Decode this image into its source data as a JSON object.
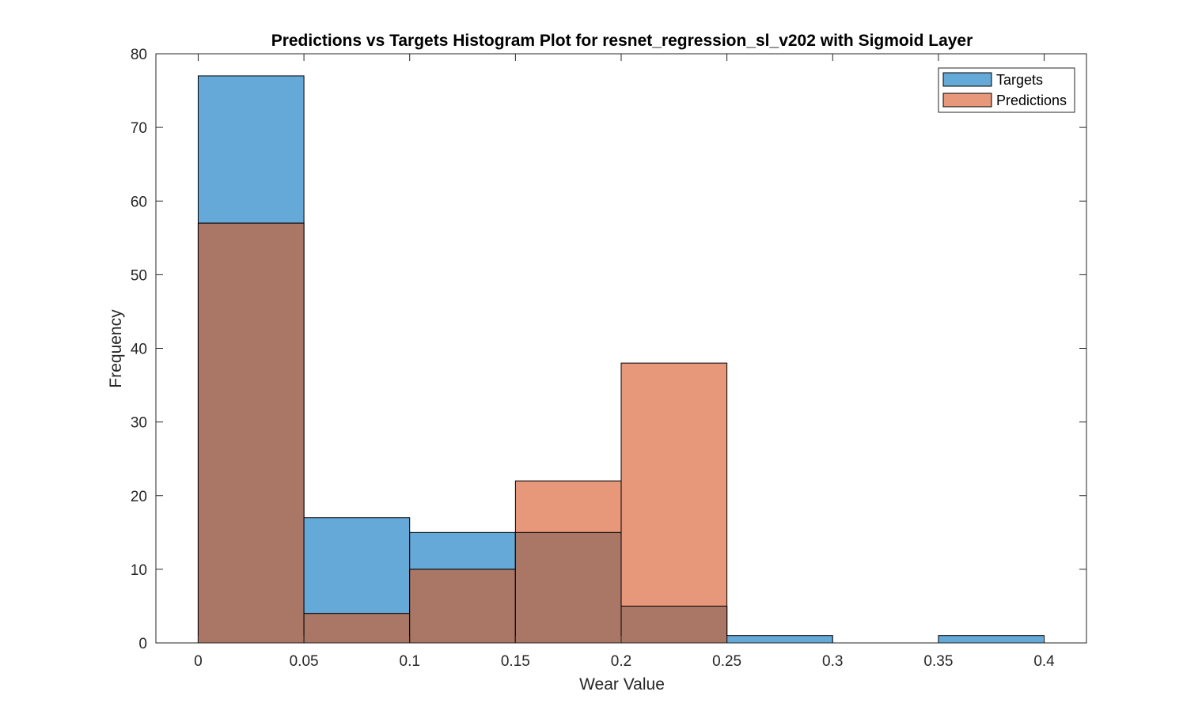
{
  "chart_data": {
    "type": "bar",
    "title": "Predictions vs Targets Histogram Plot for resnet_regression_sl_v202 with Sigmoid Layer",
    "xlabel": "Wear Value",
    "ylabel": "Frequency",
    "xlim": [
      -0.02,
      0.42
    ],
    "ylim": [
      0,
      80
    ],
    "xticks": [
      "0",
      "0.05",
      "0.1",
      "0.15",
      "0.2",
      "0.25",
      "0.3",
      "0.35",
      "0.4"
    ],
    "yticks": [
      "0",
      "10",
      "20",
      "30",
      "40",
      "50",
      "60",
      "70",
      "80"
    ],
    "grid": false,
    "legend_position": "top-right",
    "series": [
      {
        "name": "Targets",
        "color": "#0072BD",
        "fill_color": "#64A9D8",
        "bin_edges": [
          0,
          0.05,
          0.1,
          0.15,
          0.2,
          0.25,
          0.3,
          0.35,
          0.4
        ],
        "counts": [
          77,
          17,
          15,
          15,
          5,
          1,
          0,
          1
        ]
      },
      {
        "name": "Predictions",
        "color": "#D95319",
        "fill_color": "#E8987A",
        "bin_edges": [
          0,
          0.05,
          0.1,
          0.15,
          0.2,
          0.25
        ],
        "counts": [
          57,
          4,
          10,
          22,
          38
        ]
      }
    ],
    "overlap_color": "#AA7767"
  }
}
